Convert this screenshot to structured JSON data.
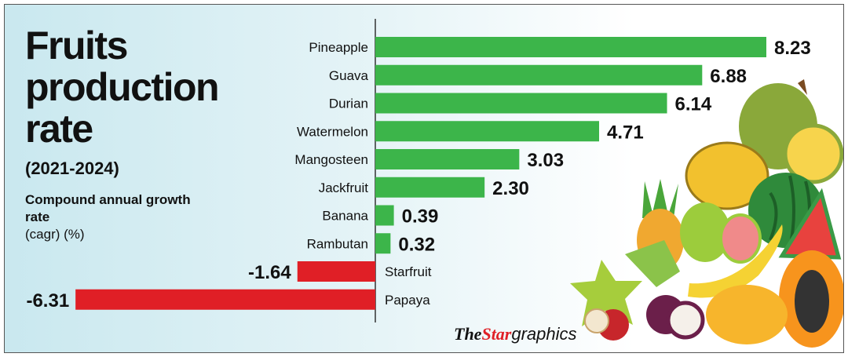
{
  "header": {
    "title": "Fruits production rate",
    "years": "(2021-2024)",
    "subtitle_bold": "Compound annual growth rate",
    "subtitle_unit": "(cagr) (%)"
  },
  "credit": {
    "the": "The",
    "star": "Star",
    "graphics": "graphics"
  },
  "colors": {
    "positive": "#3cb54a",
    "negative": "#e01f26",
    "axis": "#333333"
  },
  "illustration": "fruit-pile-illustration",
  "chart_data": {
    "type": "bar",
    "orientation": "horizontal",
    "title": "Fruits production rate",
    "subtitle": "Compound annual growth rate (cagr) (%)",
    "categories": [
      "Pineapple",
      "Guava",
      "Durian",
      "Watermelon",
      "Mangosteen",
      "Jackfruit",
      "Banana",
      "Rambutan",
      "Starfruit",
      "Papaya"
    ],
    "values": [
      8.23,
      6.88,
      6.14,
      4.71,
      3.03,
      2.3,
      0.39,
      0.32,
      -1.64,
      -6.31
    ],
    "value_labels": [
      "8.23",
      "6.88",
      "6.14",
      "4.71",
      "3.03",
      "2.30",
      "0.39",
      "0.32",
      "-1.64",
      "-6.31"
    ],
    "xlim": [
      -6.31,
      8.23
    ],
    "grid": false,
    "legend": "none"
  }
}
